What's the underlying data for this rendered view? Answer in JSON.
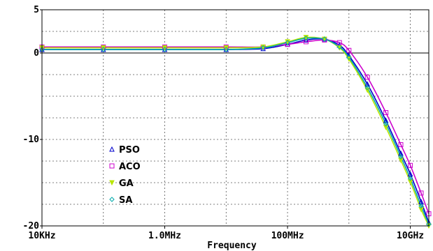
{
  "chart_data": {
    "type": "line",
    "xlabel": "Frequency",
    "ylabel": "",
    "x_scale": "log",
    "xlim": [
      10000,
      20000000000
    ],
    "ylim": [
      -20,
      5
    ],
    "x_ticks": [
      {
        "value": 10000,
        "label": "10KHz"
      },
      {
        "value": 1000000,
        "label": "1.0MHz"
      },
      {
        "value": 100000000,
        "label": "100MHz"
      },
      {
        "value": 10000000000,
        "label": "10GHz"
      }
    ],
    "y_ticks": [
      {
        "value": 5,
        "label": "5"
      },
      {
        "value": 0,
        "label": "0"
      },
      {
        "value": -10,
        "label": "-10"
      },
      {
        "value": -20,
        "label": "-20"
      }
    ],
    "grid": true,
    "legend_position": "bottom-left",
    "series": [
      {
        "name": "PSO",
        "color": "#0000cc",
        "marker": "triangle",
        "x": [
          10000,
          100000,
          1000000,
          10000000,
          40000000,
          100000000,
          200000000,
          400000000,
          700000000,
          1000000000,
          2000000000,
          4000000000,
          7000000000,
          10000000000,
          15000000000,
          20000000000
        ],
        "y": [
          0.4,
          0.4,
          0.4,
          0.4,
          0.5,
          1.0,
          1.5,
          1.6,
          0.9,
          -0.3,
          -3.6,
          -7.8,
          -11.6,
          -14.0,
          -17.2,
          -19.6
        ]
      },
      {
        "name": "ACO",
        "color": "#cc00cc",
        "marker": "square",
        "x": [
          10000,
          100000,
          1000000,
          10000000,
          40000000,
          100000000,
          200000000,
          400000000,
          700000000,
          1000000000,
          2000000000,
          4000000000,
          7000000000,
          10000000000,
          15000000000,
          20000000000
        ],
        "y": [
          0.7,
          0.7,
          0.7,
          0.7,
          0.7,
          1.0,
          1.3,
          1.5,
          1.2,
          0.3,
          -2.8,
          -6.9,
          -10.6,
          -13.0,
          -16.2,
          -18.6
        ]
      },
      {
        "name": "GA",
        "color": "#b8e600",
        "marker": "triangle-down",
        "x": [
          10000,
          100000,
          1000000,
          10000000,
          40000000,
          100000000,
          200000000,
          400000000,
          700000000,
          1000000000,
          2000000000,
          4000000000,
          7000000000,
          10000000000,
          15000000000,
          20000000000
        ],
        "y": [
          0.6,
          0.6,
          0.6,
          0.6,
          0.7,
          1.3,
          1.8,
          1.6,
          0.6,
          -0.7,
          -4.3,
          -8.6,
          -12.4,
          -14.9,
          -18.1,
          -20.0
        ]
      },
      {
        "name": "SA",
        "color": "#00aaaa",
        "marker": "diamond",
        "x": [
          10000,
          100000,
          1000000,
          10000000,
          40000000,
          100000000,
          200000000,
          400000000,
          700000000,
          1000000000,
          2000000000,
          4000000000,
          7000000000,
          10000000000,
          15000000000,
          20000000000
        ],
        "y": [
          0.4,
          0.4,
          0.4,
          0.4,
          0.6,
          1.2,
          1.7,
          1.6,
          0.7,
          -0.5,
          -4.0,
          -8.2,
          -12.0,
          -14.5,
          -17.7,
          -19.8
        ]
      }
    ]
  }
}
